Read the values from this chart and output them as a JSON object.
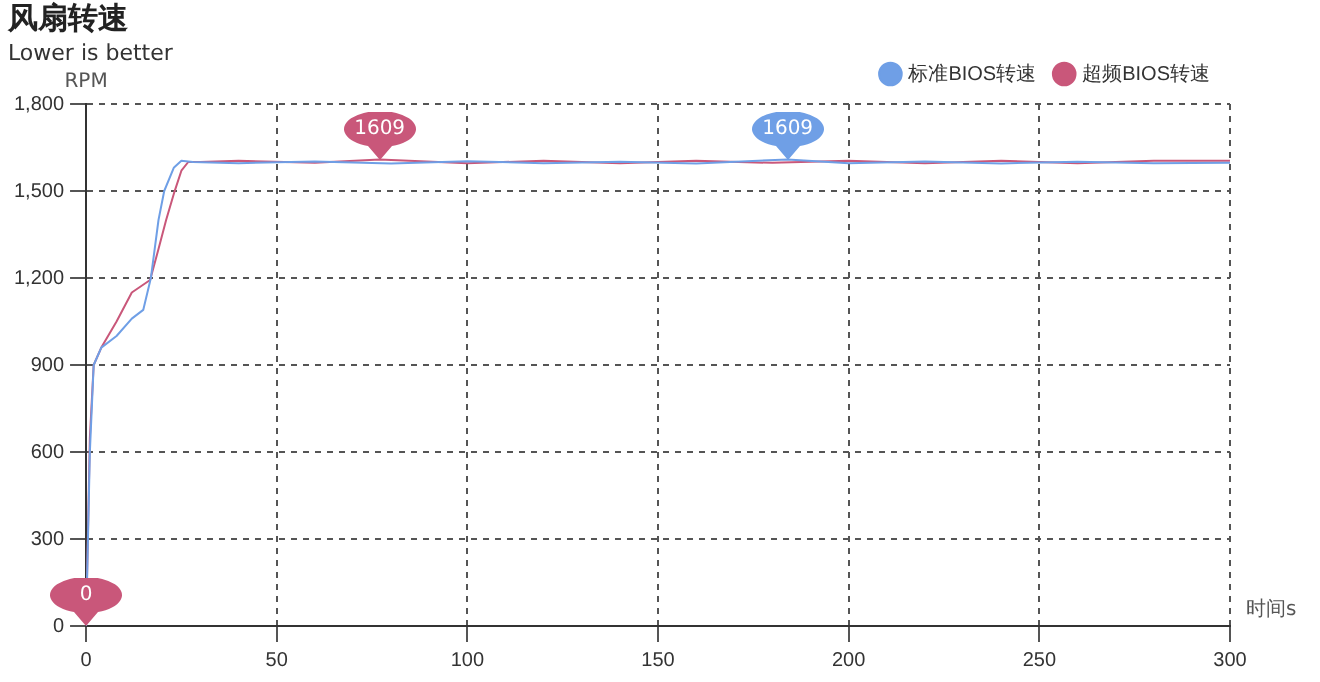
{
  "chart_data": {
    "type": "line",
    "title": "风扇转速",
    "subtitle": "Lower is better",
    "xlabel": "时间s",
    "ylabel": "RPM",
    "xlim": [
      0,
      300
    ],
    "xticks": [
      0,
      50,
      100,
      150,
      200,
      250,
      300
    ],
    "ylim": [
      0,
      1800
    ],
    "yticks": [
      0,
      300,
      600,
      900,
      {
        "value": 1200,
        "label": "1,200"
      },
      {
        "value": 1500,
        "label": "1,500"
      },
      {
        "value": 1800,
        "label": "1,800"
      }
    ],
    "grid": true,
    "legend": "top right",
    "marker": "none",
    "line_style": "solid",
    "series": [
      {
        "name": "标准BIOS转速",
        "color": "#6f9fe6",
        "x": [
          0,
          1,
          2,
          4,
          8,
          12,
          15,
          17,
          19,
          20.5,
          23,
          25,
          28,
          40,
          60,
          80,
          100,
          120,
          140,
          160,
          184,
          200,
          220,
          240,
          260,
          280,
          300
        ],
        "values": [
          0,
          600,
          900,
          960,
          1000,
          1060,
          1090,
          1200,
          1400,
          1500,
          1580,
          1604,
          1600,
          1596,
          1602,
          1595,
          1603,
          1596,
          1601,
          1595,
          1609,
          1596,
          1602,
          1595,
          1601,
          1596,
          1597
        ]
      },
      {
        "name": "超频BIOS转速",
        "color": "#c9577a",
        "x": [
          0,
          1,
          2,
          4,
          8,
          12,
          16.8,
          19,
          21,
          23.2,
          25,
          26.8,
          30,
          40,
          60,
          77,
          100,
          120,
          140,
          160,
          180,
          200,
          220,
          240,
          260,
          280,
          300
        ],
        "values": [
          0,
          650,
          900,
          960,
          1050,
          1150,
          1193,
          1300,
          1400,
          1498,
          1570,
          1600,
          1600,
          1604,
          1597,
          1609,
          1596,
          1604,
          1596,
          1604,
          1597,
          1604,
          1596,
          1604,
          1596,
          1604,
          1604
        ]
      }
    ],
    "annotations": [
      {
        "text": "0",
        "x": 0,
        "y": 0
      },
      {
        "text": "1609",
        "x": 77,
        "y": 1609
      },
      {
        "text": "1609",
        "x": 184,
        "y": 1609
      }
    ]
  }
}
